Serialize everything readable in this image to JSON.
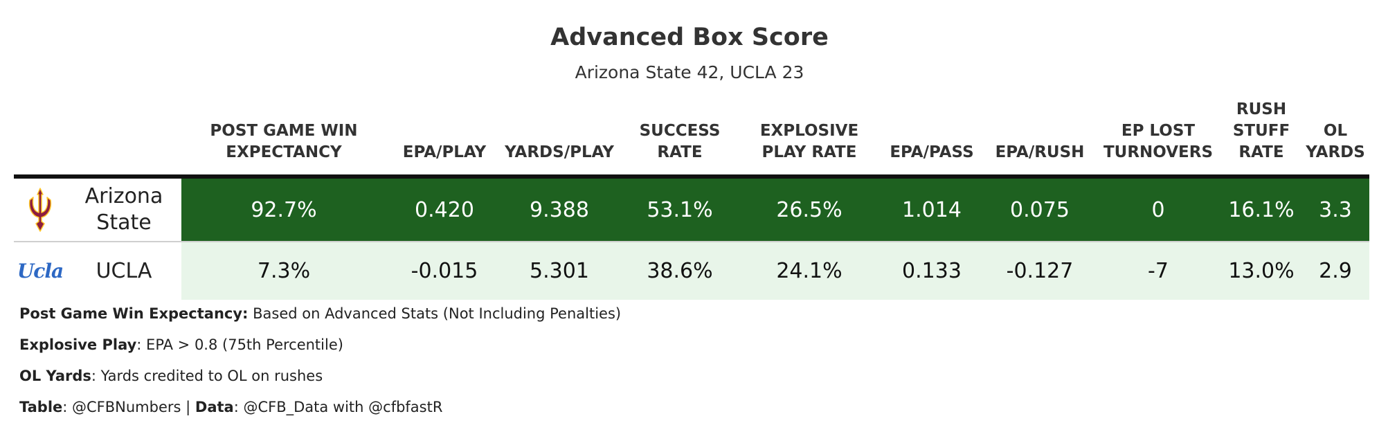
{
  "title": "Advanced Box Score",
  "subtitle": "Arizona State 42, UCLA 23",
  "colors": {
    "winner_row_bg": "#1e6120",
    "winner_row_text": "#ffffff",
    "loser_row_bg": "#e8f5e9",
    "loser_row_text": "#111111",
    "header_rule": "#111111"
  },
  "chart_data": {
    "type": "table",
    "columns": [
      "POST GAME WIN EXPECTANCY",
      "EPA/PLAY",
      "YARDS/PLAY",
      "SUCCESS RATE",
      "EXPLOSIVE PLAY RATE",
      "EPA/PASS",
      "EPA/RUSH",
      "EP LOST TURNOVERS",
      "RUSH STUFF RATE",
      "OL YARDS"
    ],
    "header_lines": [
      [
        "POST GAME WIN",
        "EXPECTANCY"
      ],
      [
        "EPA/PLAY"
      ],
      [
        "YARDS/PLAY"
      ],
      [
        "SUCCESS",
        "RATE"
      ],
      [
        "EXPLOSIVE",
        "PLAY RATE"
      ],
      [
        "EPA/PASS"
      ],
      [
        "EPA/RUSH"
      ],
      [
        "EP LOST",
        "TURNOVERS"
      ],
      [
        "RUSH",
        "STUFF",
        "RATE"
      ],
      [
        "OL",
        "YARDS"
      ]
    ],
    "rows": [
      {
        "team": "Arizona State",
        "team_lines": [
          "Arizona",
          "State"
        ],
        "logo": "asu-pitchfork-icon",
        "values": [
          "92.7%",
          "0.420",
          "9.388",
          "53.1%",
          "26.5%",
          "1.014",
          "0.075",
          "0",
          "16.1%",
          "3.3"
        ]
      },
      {
        "team": "UCLA",
        "team_lines": [
          "UCLA"
        ],
        "logo": "ucla-script-logo",
        "logo_text": "Ucla",
        "values": [
          "7.3%",
          "-0.015",
          "5.301",
          "38.6%",
          "24.1%",
          "0.133",
          "-0.127",
          "-7",
          "13.0%",
          "2.9"
        ]
      }
    ]
  },
  "notes": [
    {
      "label": "Post Game Win Expectancy:",
      "text": " Based on Advanced Stats (Not Including Penalties)"
    },
    {
      "label": "Explosive Play",
      "text": ": EPA > 0.8 (75th Percentile)"
    },
    {
      "label": "OL Yards",
      "text": ": Yards credited to OL on rushes"
    }
  ],
  "credits": {
    "table_label": "Table",
    "table_text": ": @CFBNumbers | ",
    "data_label": "Data",
    "data_text": ": @CFB_Data with @cfbfastR"
  }
}
